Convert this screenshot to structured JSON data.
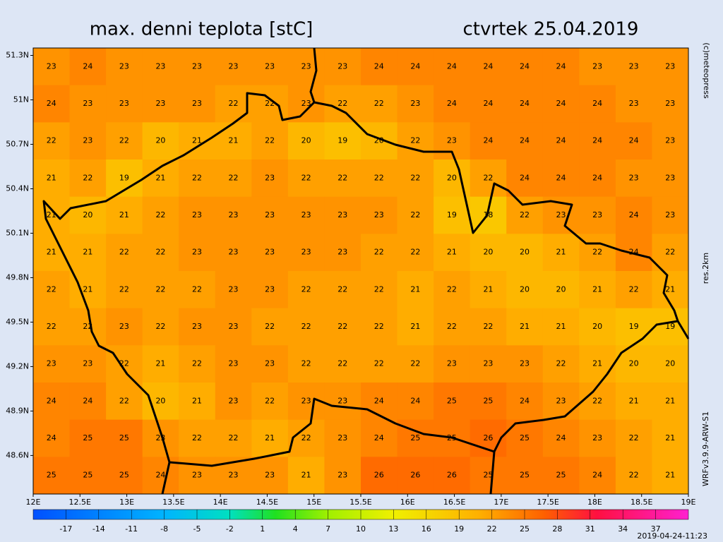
{
  "chart_data": {
    "type": "grid-map",
    "title": "max. denni teplota [stC]",
    "subtitle": "ctvrtek 25.04.2019",
    "credit": "(c)meteopress",
    "resolution": "res.2km",
    "model": "WRFv3.9.9-ARW-S1",
    "timestamp": "2019-04-24-11:23",
    "xlim": [
      12,
      19
    ],
    "ylim": [
      48.34,
      51.35
    ],
    "xticks": [
      {
        "value": 12,
        "label": "12E"
      },
      {
        "value": 12.5,
        "label": "12.5E"
      },
      {
        "value": 13,
        "label": "13E"
      },
      {
        "value": 13.5,
        "label": "13.5E"
      },
      {
        "value": 14,
        "label": "14E"
      },
      {
        "value": 14.5,
        "label": "14.5E"
      },
      {
        "value": 15,
        "label": "15E"
      },
      {
        "value": 15.5,
        "label": "15.5E"
      },
      {
        "value": 16,
        "label": "16E"
      },
      {
        "value": 16.5,
        "label": "16.5E"
      },
      {
        "value": 17,
        "label": "17E"
      },
      {
        "value": 17.5,
        "label": "17.5E"
      },
      {
        "value": 18,
        "label": "18E"
      },
      {
        "value": 18.5,
        "label": "18.5E"
      },
      {
        "value": 19,
        "label": "19E"
      }
    ],
    "yticks": [
      {
        "value": 51.3,
        "label": "51.3N"
      },
      {
        "value": 51,
        "label": "51N"
      },
      {
        "value": 50.7,
        "label": "50.7N"
      },
      {
        "value": 50.4,
        "label": "50.4N"
      },
      {
        "value": 50.1,
        "label": "50.1N"
      },
      {
        "value": 49.8,
        "label": "49.8N"
      },
      {
        "value": 49.5,
        "label": "49.5N"
      },
      {
        "value": 49.2,
        "label": "49.2N"
      },
      {
        "value": 48.9,
        "label": "48.9N"
      },
      {
        "value": 48.6,
        "label": "48.6N"
      }
    ],
    "clim": [
      -20,
      40
    ],
    "cticks": [
      -17,
      -14,
      -11,
      -8,
      -5,
      -2,
      1,
      4,
      7,
      10,
      13,
      16,
      19,
      22,
      25,
      28,
      31,
      34,
      37
    ],
    "grid": [
      [
        23,
        24,
        23,
        23,
        23,
        23,
        23,
        23,
        23,
        24,
        24,
        24,
        24,
        24,
        24,
        23,
        23,
        23
      ],
      [
        24,
        23,
        23,
        23,
        23,
        22,
        22,
        23,
        22,
        22,
        23,
        24,
        24,
        24,
        24,
        24,
        23,
        23
      ],
      [
        22,
        23,
        22,
        20,
        21,
        21,
        22,
        20,
        19,
        20,
        22,
        23,
        24,
        24,
        24,
        24,
        24,
        23
      ],
      [
        21,
        22,
        19,
        21,
        22,
        22,
        23,
        22,
        22,
        22,
        22,
        20,
        22,
        24,
        24,
        24,
        23,
        23
      ],
      [
        21,
        20,
        21,
        22,
        23,
        23,
        23,
        23,
        23,
        23,
        22,
        19,
        18,
        22,
        23,
        23,
        24,
        23
      ],
      [
        21,
        21,
        22,
        22,
        23,
        23,
        23,
        23,
        23,
        22,
        22,
        21,
        20,
        20,
        21,
        22,
        24,
        22
      ],
      [
        22,
        21,
        22,
        22,
        22,
        23,
        23,
        22,
        22,
        22,
        21,
        22,
        21,
        20,
        20,
        21,
        22,
        21
      ],
      [
        22,
        22,
        23,
        22,
        23,
        23,
        22,
        22,
        22,
        22,
        21,
        22,
        22,
        21,
        21,
        20,
        19,
        19
      ],
      [
        23,
        23,
        22,
        21,
        22,
        23,
        23,
        22,
        22,
        22,
        22,
        23,
        23,
        23,
        22,
        21,
        20,
        20
      ],
      [
        24,
        24,
        22,
        20,
        21,
        23,
        22,
        23,
        23,
        24,
        24,
        25,
        25,
        24,
        23,
        22,
        21,
        21
      ],
      [
        24,
        25,
        25,
        23,
        22,
        22,
        21,
        22,
        23,
        24,
        25,
        25,
        26,
        25,
        24,
        23,
        22,
        21
      ],
      [
        25,
        25,
        25,
        24,
        23,
        23,
        23,
        21,
        23,
        26,
        26,
        26,
        25,
        25,
        25,
        24,
        22,
        21
      ]
    ]
  }
}
